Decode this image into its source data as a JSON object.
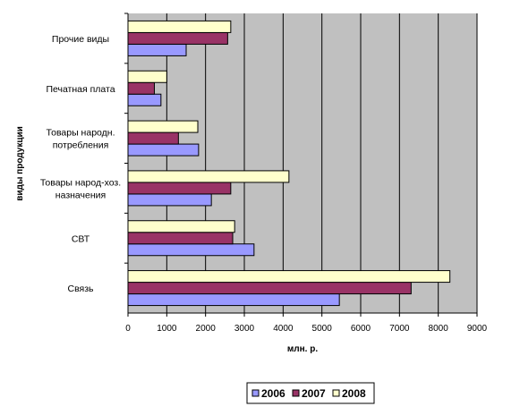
{
  "chart_data": {
    "type": "bar",
    "orientation": "horizontal",
    "title": "",
    "xlabel": "млн. р.",
    "ylabel": "виды продукции",
    "xlim": [
      0,
      9000
    ],
    "x_ticks": [
      "0",
      "1000",
      "2000",
      "3000",
      "4000",
      "5000",
      "6000",
      "7000",
      "8000",
      "9000"
    ],
    "grid": true,
    "legend_position": "bottom",
    "categories": [
      [
        "Связь"
      ],
      [
        "СВТ"
      ],
      [
        "Товары народ-хоз.",
        "назначения"
      ],
      [
        "Товары народн.",
        "потребления"
      ],
      [
        "Печатная плата"
      ],
      [
        "Прочие виды"
      ]
    ],
    "series": [
      {
        "name": "2006",
        "color": "#9999ff",
        "values": [
          5450,
          3250,
          2150,
          1820,
          850,
          1500
        ]
      },
      {
        "name": "2007",
        "color": "#993366",
        "values": [
          7300,
          2700,
          2650,
          1300,
          680,
          2570
        ]
      },
      {
        "name": "2008",
        "color": "#ffffcc",
        "values": [
          8300,
          2750,
          4150,
          1800,
          1000,
          2650
        ]
      }
    ],
    "plot_background": "#c0c0c0"
  }
}
